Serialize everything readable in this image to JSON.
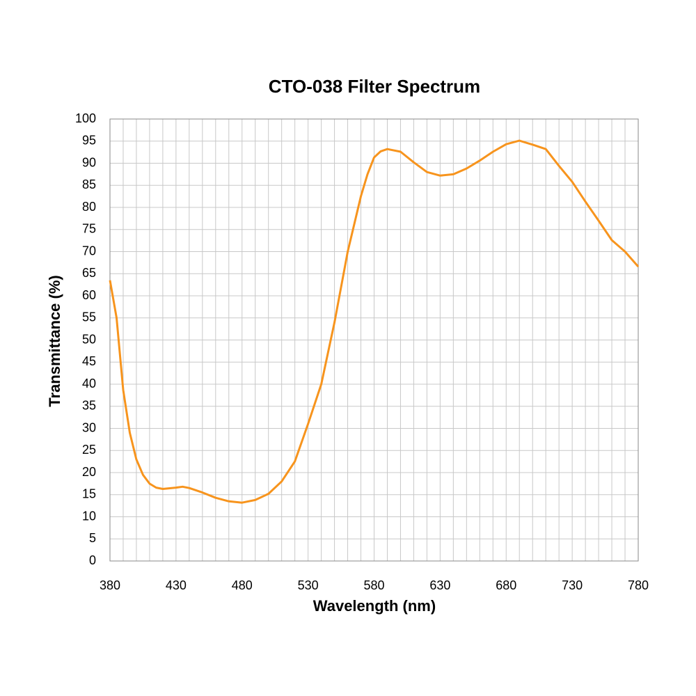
{
  "chart_data": {
    "type": "line",
    "title": "CTO-038 Filter Spectrum",
    "x_label": "Wavelength (nm)",
    "y_label": "Transmittance (%)",
    "x": [
      380,
      385,
      390,
      395,
      400,
      405,
      410,
      415,
      420,
      430,
      435,
      440,
      450,
      460,
      470,
      480,
      490,
      500,
      510,
      520,
      530,
      540,
      550,
      560,
      570,
      575,
      580,
      585,
      590,
      600,
      610,
      620,
      630,
      640,
      650,
      660,
      670,
      680,
      690,
      700,
      710,
      720,
      730,
      740,
      750,
      760,
      770,
      780
    ],
    "series": [
      {
        "name": "CTO-038",
        "color": "#f7941d",
        "values": [
          63.5,
          55,
          38.7,
          29,
          23,
          19.5,
          17.5,
          16.6,
          16.3,
          16.6,
          16.8,
          16.5,
          15.5,
          14.3,
          13.5,
          13.2,
          13.8,
          15.2,
          18,
          22.5,
          31,
          40,
          54,
          70,
          82.5,
          87.5,
          91.3,
          92.7,
          93.2,
          92.6,
          90.2,
          88,
          87.2,
          87.5,
          88.8,
          90.6,
          92.6,
          94.3,
          95.1,
          94.2,
          93.2,
          89.4,
          85.8,
          81.3,
          77,
          72.6,
          70,
          66.6
        ]
      }
    ],
    "xlim": [
      380,
      780
    ],
    "xticks": [
      380,
      430,
      480,
      530,
      580,
      630,
      680,
      730,
      780
    ],
    "xminorticks": [
      390,
      400,
      410,
      420,
      440,
      450,
      460,
      470,
      490,
      500,
      510,
      520,
      540,
      550,
      560,
      570,
      590,
      600,
      610,
      620,
      640,
      650,
      660,
      670,
      690,
      700,
      710,
      720,
      740,
      750,
      760,
      770
    ],
    "ylim": [
      0,
      100
    ],
    "yticks": [
      0,
      5,
      10,
      15,
      20,
      25,
      30,
      35,
      40,
      45,
      50,
      55,
      60,
      65,
      70,
      75,
      80,
      85,
      90,
      95,
      100
    ],
    "grid": true
  }
}
